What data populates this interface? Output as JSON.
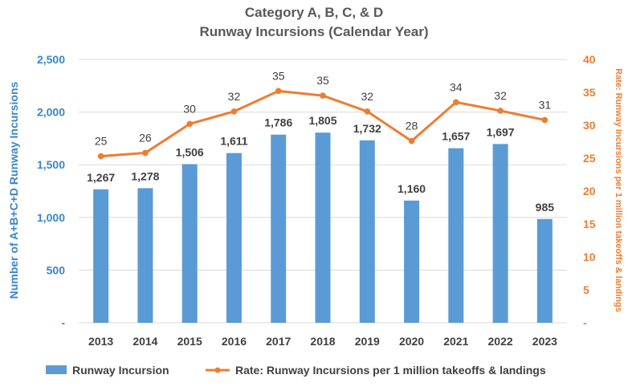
{
  "chart_data": {
    "type": "bar",
    "title": "Category A, B, C, & D",
    "subtitle": "Runway Incursions (Calendar Year)",
    "categories": [
      "2013",
      "2014",
      "2015",
      "2016",
      "2017",
      "2018",
      "2019",
      "2020",
      "2021",
      "2022",
      "2023"
    ],
    "series": [
      {
        "name": "Runway Incursion",
        "type": "bar",
        "axis": "left",
        "values": [
          1267,
          1278,
          1506,
          1611,
          1786,
          1805,
          1732,
          1160,
          1657,
          1697,
          985
        ],
        "labels": [
          "1,267",
          "1,278",
          "1,506",
          "1,611",
          "1,786",
          "1,805",
          "1,732",
          "1,160",
          "1,657",
          "1,697",
          "985"
        ],
        "color": "#5b9bd5"
      },
      {
        "name": "Rate: Runway Incursions per 1 million takeoffs & landings",
        "type": "line",
        "axis": "right",
        "values": [
          25.3,
          25.8,
          30.2,
          32.1,
          35.2,
          34.5,
          32.1,
          27.6,
          33.5,
          32.2,
          30.8
        ],
        "labels": [
          "25",
          "26",
          "30",
          "32",
          "35",
          "35",
          "32",
          "28",
          "34",
          "32",
          "31"
        ],
        "color": "#ed7d31"
      }
    ],
    "ylabel": "Number of A+B+C+D Runway Incursions",
    "y2label": "Rate: Runway Incursions per 1 million takeoffs & landings",
    "ylim": [
      0,
      2500
    ],
    "y2lim": [
      0,
      40
    ],
    "yticks": [
      0,
      500,
      1000,
      1500,
      2000,
      2500
    ],
    "ytick_labels": [
      "-",
      "500",
      "1,000",
      "1,500",
      "2,000",
      "2,500"
    ],
    "y2ticks": [
      0,
      5,
      10,
      15,
      20,
      25,
      30,
      35,
      40
    ],
    "y2tick_labels": [
      "-",
      "5",
      "10",
      "15",
      "20",
      "25",
      "30",
      "35",
      "40"
    ],
    "grid": true,
    "legend_position": "bottom"
  }
}
